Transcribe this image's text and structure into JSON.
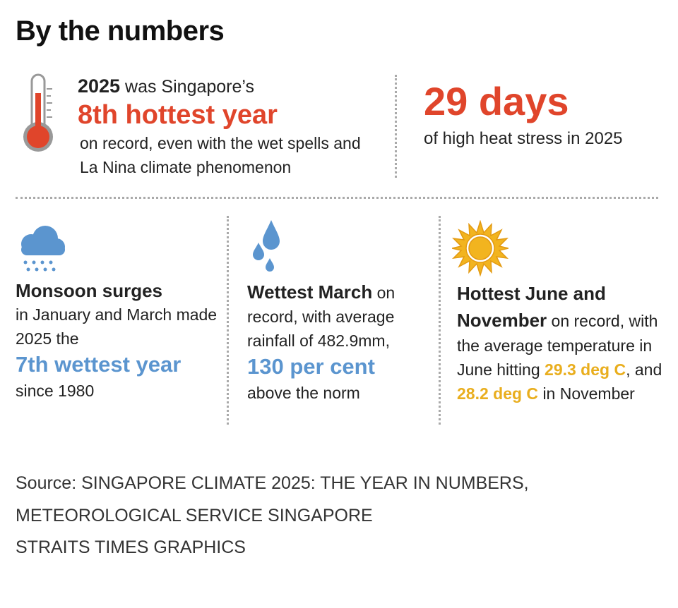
{
  "title": "By the numbers",
  "top_left": {
    "lead_bold": "2025",
    "lead": "was Singapore’s",
    "highlight": "8th hottest year",
    "body": "on record, even with the wet spells and La Nina climate phenomenon"
  },
  "top_right": {
    "highlight": "29 days",
    "body": "of high heat stress in 2025"
  },
  "monsoon": {
    "heading": "Monsoon surges",
    "body": "in January and March made 2025 the",
    "highlight": "7th wettest year",
    "tail": "since 1980"
  },
  "march": {
    "heading": "Wettest March",
    "body": "on record, with average rainfall of 482.9mm,",
    "highlight": "130 per cent",
    "tail": "above the norm"
  },
  "heat": {
    "heading": "Hottest June and November",
    "body": "on record, with the average temperature in June hitting",
    "highlight_1": "29.3 deg C",
    "mid": ", and",
    "highlight_2": "28.2 deg C",
    "tail": "in November"
  },
  "source": [
    "Source: SINGAPORE CLIMATE 2025: THE YEAR IN NUMBERS,",
    "METEOROLOGICAL SERVICE SINGAPORE"
  ],
  "credit": "STRAITS TIMES GRAPHICS"
}
